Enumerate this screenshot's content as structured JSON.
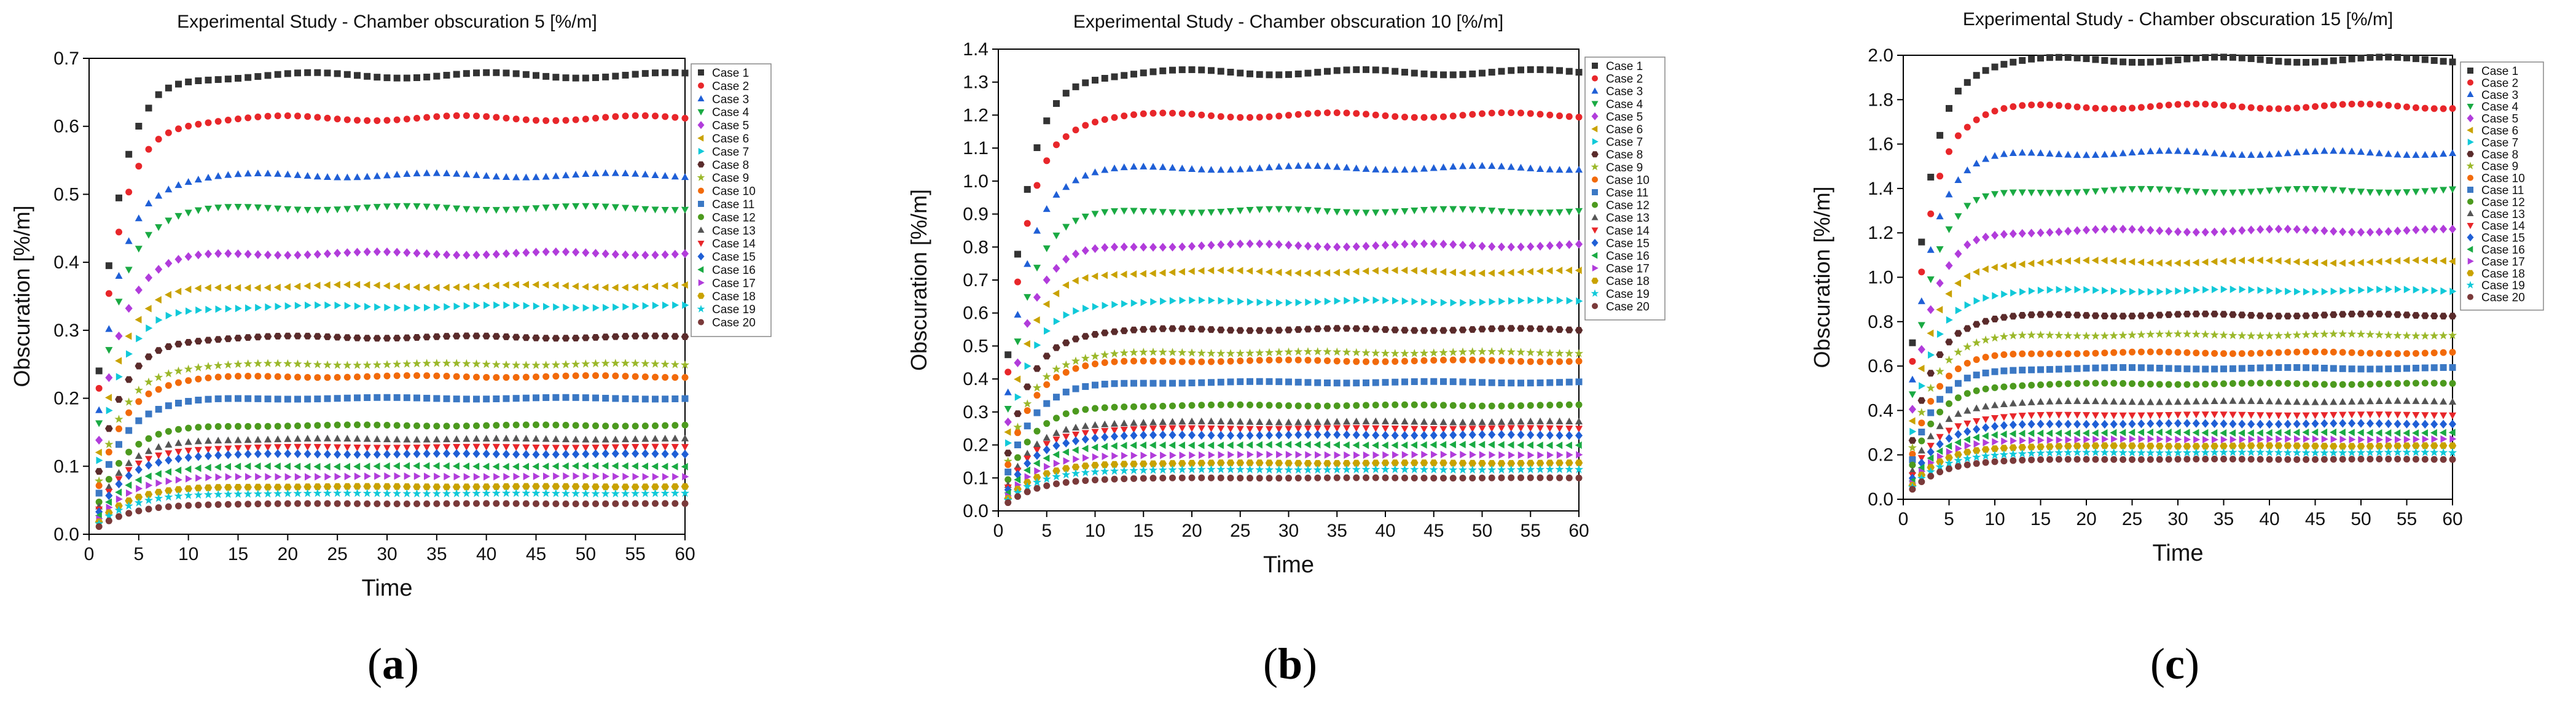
{
  "panels": [
    {
      "caption_open": "(",
      "caption_letter": "a",
      "caption_close": ")"
    },
    {
      "caption_open": "(",
      "caption_letter": "b",
      "caption_close": ")"
    },
    {
      "caption_open": "(",
      "caption_letter": "c",
      "caption_close": ")"
    }
  ],
  "chart_data": [
    {
      "type": "scatter",
      "title": "Experimental Study - Chamber obscuration 5 [%/m]",
      "xlabel": "Time",
      "ylabel": "Obscuration [%/m]",
      "xlim": [
        0,
        60
      ],
      "ylim": [
        0,
        0.7
      ],
      "xticks": [
        0,
        5,
        10,
        15,
        20,
        25,
        30,
        35,
        40,
        45,
        50,
        55,
        60
      ],
      "yticks": [
        0.0,
        0.1,
        0.2,
        0.3,
        0.4,
        0.5,
        0.6,
        0.7
      ],
      "legend_position": "right",
      "series": [
        {
          "name": "Case 1",
          "plateau": 0.675
        },
        {
          "name": "Case 2",
          "plateau": 0.612
        },
        {
          "name": "Case 3",
          "plateau": 0.528
        },
        {
          "name": "Case 4",
          "plateau": 0.48
        },
        {
          "name": "Case 5",
          "plateau": 0.413
        },
        {
          "name": "Case 6",
          "plateau": 0.365
        },
        {
          "name": "Case 7",
          "plateau": 0.335
        },
        {
          "name": "Case 8",
          "plateau": 0.29
        },
        {
          "name": "Case 9",
          "plateau": 0.25
        },
        {
          "name": "Case 10",
          "plateau": 0.232
        },
        {
          "name": "Case 11",
          "plateau": 0.2
        },
        {
          "name": "Case 12",
          "plateau": 0.16
        },
        {
          "name": "Case 13",
          "plateau": 0.14
        },
        {
          "name": "Case 14",
          "plateau": 0.128
        },
        {
          "name": "Case 15",
          "plateau": 0.118
        },
        {
          "name": "Case 16",
          "plateau": 0.1
        },
        {
          "name": "Case 17",
          "plateau": 0.085
        },
        {
          "name": "Case 18",
          "plateau": 0.07
        },
        {
          "name": "Case 19",
          "plateau": 0.06
        },
        {
          "name": "Case 20",
          "plateau": 0.045
        }
      ]
    },
    {
      "type": "scatter",
      "title": "Experimental Study - Chamber obscuration 10 [%/m]",
      "xlabel": "Time",
      "ylabel": "Obscuration [%/m]",
      "xlim": [
        0,
        60
      ],
      "ylim": [
        0,
        1.4
      ],
      "xticks": [
        0,
        5,
        10,
        15,
        20,
        25,
        30,
        35,
        40,
        45,
        50,
        55,
        60
      ],
      "yticks": [
        0.0,
        0.1,
        0.2,
        0.3,
        0.4,
        0.5,
        0.6,
        0.7,
        0.8,
        0.9,
        1.0,
        1.1,
        1.2,
        1.3,
        1.4
      ],
      "legend_position": "right",
      "series": [
        {
          "name": "Case 1",
          "plateau": 1.33
        },
        {
          "name": "Case 2",
          "plateau": 1.2
        },
        {
          "name": "Case 3",
          "plateau": 1.04
        },
        {
          "name": "Case 4",
          "plateau": 0.91
        },
        {
          "name": "Case 5",
          "plateau": 0.805
        },
        {
          "name": "Case 6",
          "plateau": 0.725
        },
        {
          "name": "Case 7",
          "plateau": 0.635
        },
        {
          "name": "Case 8",
          "plateau": 0.55
        },
        {
          "name": "Case 9",
          "plateau": 0.48
        },
        {
          "name": "Case 10",
          "plateau": 0.455
        },
        {
          "name": "Case 11",
          "plateau": 0.39
        },
        {
          "name": "Case 12",
          "plateau": 0.32
        },
        {
          "name": "Case 13",
          "plateau": 0.27
        },
        {
          "name": "Case 14",
          "plateau": 0.25
        },
        {
          "name": "Case 15",
          "plateau": 0.23
        },
        {
          "name": "Case 16",
          "plateau": 0.2
        },
        {
          "name": "Case 17",
          "plateau": 0.17
        },
        {
          "name": "Case 18",
          "plateau": 0.145
        },
        {
          "name": "Case 19",
          "plateau": 0.125
        },
        {
          "name": "Case 20",
          "plateau": 0.1
        }
      ]
    },
    {
      "type": "scatter",
      "title": "Experimental Study - Chamber obscuration 15 [%/m]",
      "xlabel": "Time",
      "ylabel": "Obscuration [%/m]",
      "xlim": [
        0,
        60
      ],
      "ylim": [
        0,
        2.0
      ],
      "xticks": [
        0,
        5,
        10,
        15,
        20,
        25,
        30,
        35,
        40,
        45,
        50,
        55,
        60
      ],
      "yticks": [
        0.0,
        0.2,
        0.4,
        0.6,
        0.8,
        1.0,
        1.2,
        1.4,
        1.6,
        1.8,
        2.0
      ],
      "legend_position": "right",
      "series": [
        {
          "name": "Case 1",
          "plateau": 1.98
        },
        {
          "name": "Case 2",
          "plateau": 1.77
        },
        {
          "name": "Case 3",
          "plateau": 1.56
        },
        {
          "name": "Case 4",
          "plateau": 1.39
        },
        {
          "name": "Case 5",
          "plateau": 1.21
        },
        {
          "name": "Case 6",
          "plateau": 1.07
        },
        {
          "name": "Case 7",
          "plateau": 0.94
        },
        {
          "name": "Case 8",
          "plateau": 0.83
        },
        {
          "name": "Case 9",
          "plateau": 0.74
        },
        {
          "name": "Case 10",
          "plateau": 0.66
        },
        {
          "name": "Case 11",
          "plateau": 0.59
        },
        {
          "name": "Case 12",
          "plateau": 0.52
        },
        {
          "name": "Case 13",
          "plateau": 0.44
        },
        {
          "name": "Case 14",
          "plateau": 0.38
        },
        {
          "name": "Case 15",
          "plateau": 0.34
        },
        {
          "name": "Case 16",
          "plateau": 0.3
        },
        {
          "name": "Case 17",
          "plateau": 0.27
        },
        {
          "name": "Case 18",
          "plateau": 0.24
        },
        {
          "name": "Case 19",
          "plateau": 0.21
        },
        {
          "name": "Case 20",
          "plateau": 0.18
        }
      ]
    }
  ],
  "series_style": [
    {
      "color": "#333333",
      "marker": "square"
    },
    {
      "color": "#e8262a",
      "marker": "circle"
    },
    {
      "color": "#1f5fd6",
      "marker": "triangle-up"
    },
    {
      "color": "#1aaa43",
      "marker": "triangle-down"
    },
    {
      "color": "#b13cdb",
      "marker": "diamond"
    },
    {
      "color": "#c9a200",
      "marker": "triangle-left"
    },
    {
      "color": "#10c9d9",
      "marker": "triangle-right"
    },
    {
      "color": "#5a2b2b",
      "marker": "hexagon"
    },
    {
      "color": "#9bb82a",
      "marker": "star"
    },
    {
      "color": "#f26a0a",
      "marker": "circle"
    },
    {
      "color": "#3b78c4",
      "marker": "square"
    },
    {
      "color": "#4c9a1e",
      "marker": "circle"
    },
    {
      "color": "#555555",
      "marker": "triangle-up"
    },
    {
      "color": "#e8262a",
      "marker": "triangle-down"
    },
    {
      "color": "#1f5fd6",
      "marker": "diamond"
    },
    {
      "color": "#1aaa43",
      "marker": "triangle-left"
    },
    {
      "color": "#b13cdb",
      "marker": "triangle-right"
    },
    {
      "color": "#c9a200",
      "marker": "hexagon"
    },
    {
      "color": "#10c9d9",
      "marker": "star"
    },
    {
      "color": "#7a3a3a",
      "marker": "circle"
    }
  ]
}
